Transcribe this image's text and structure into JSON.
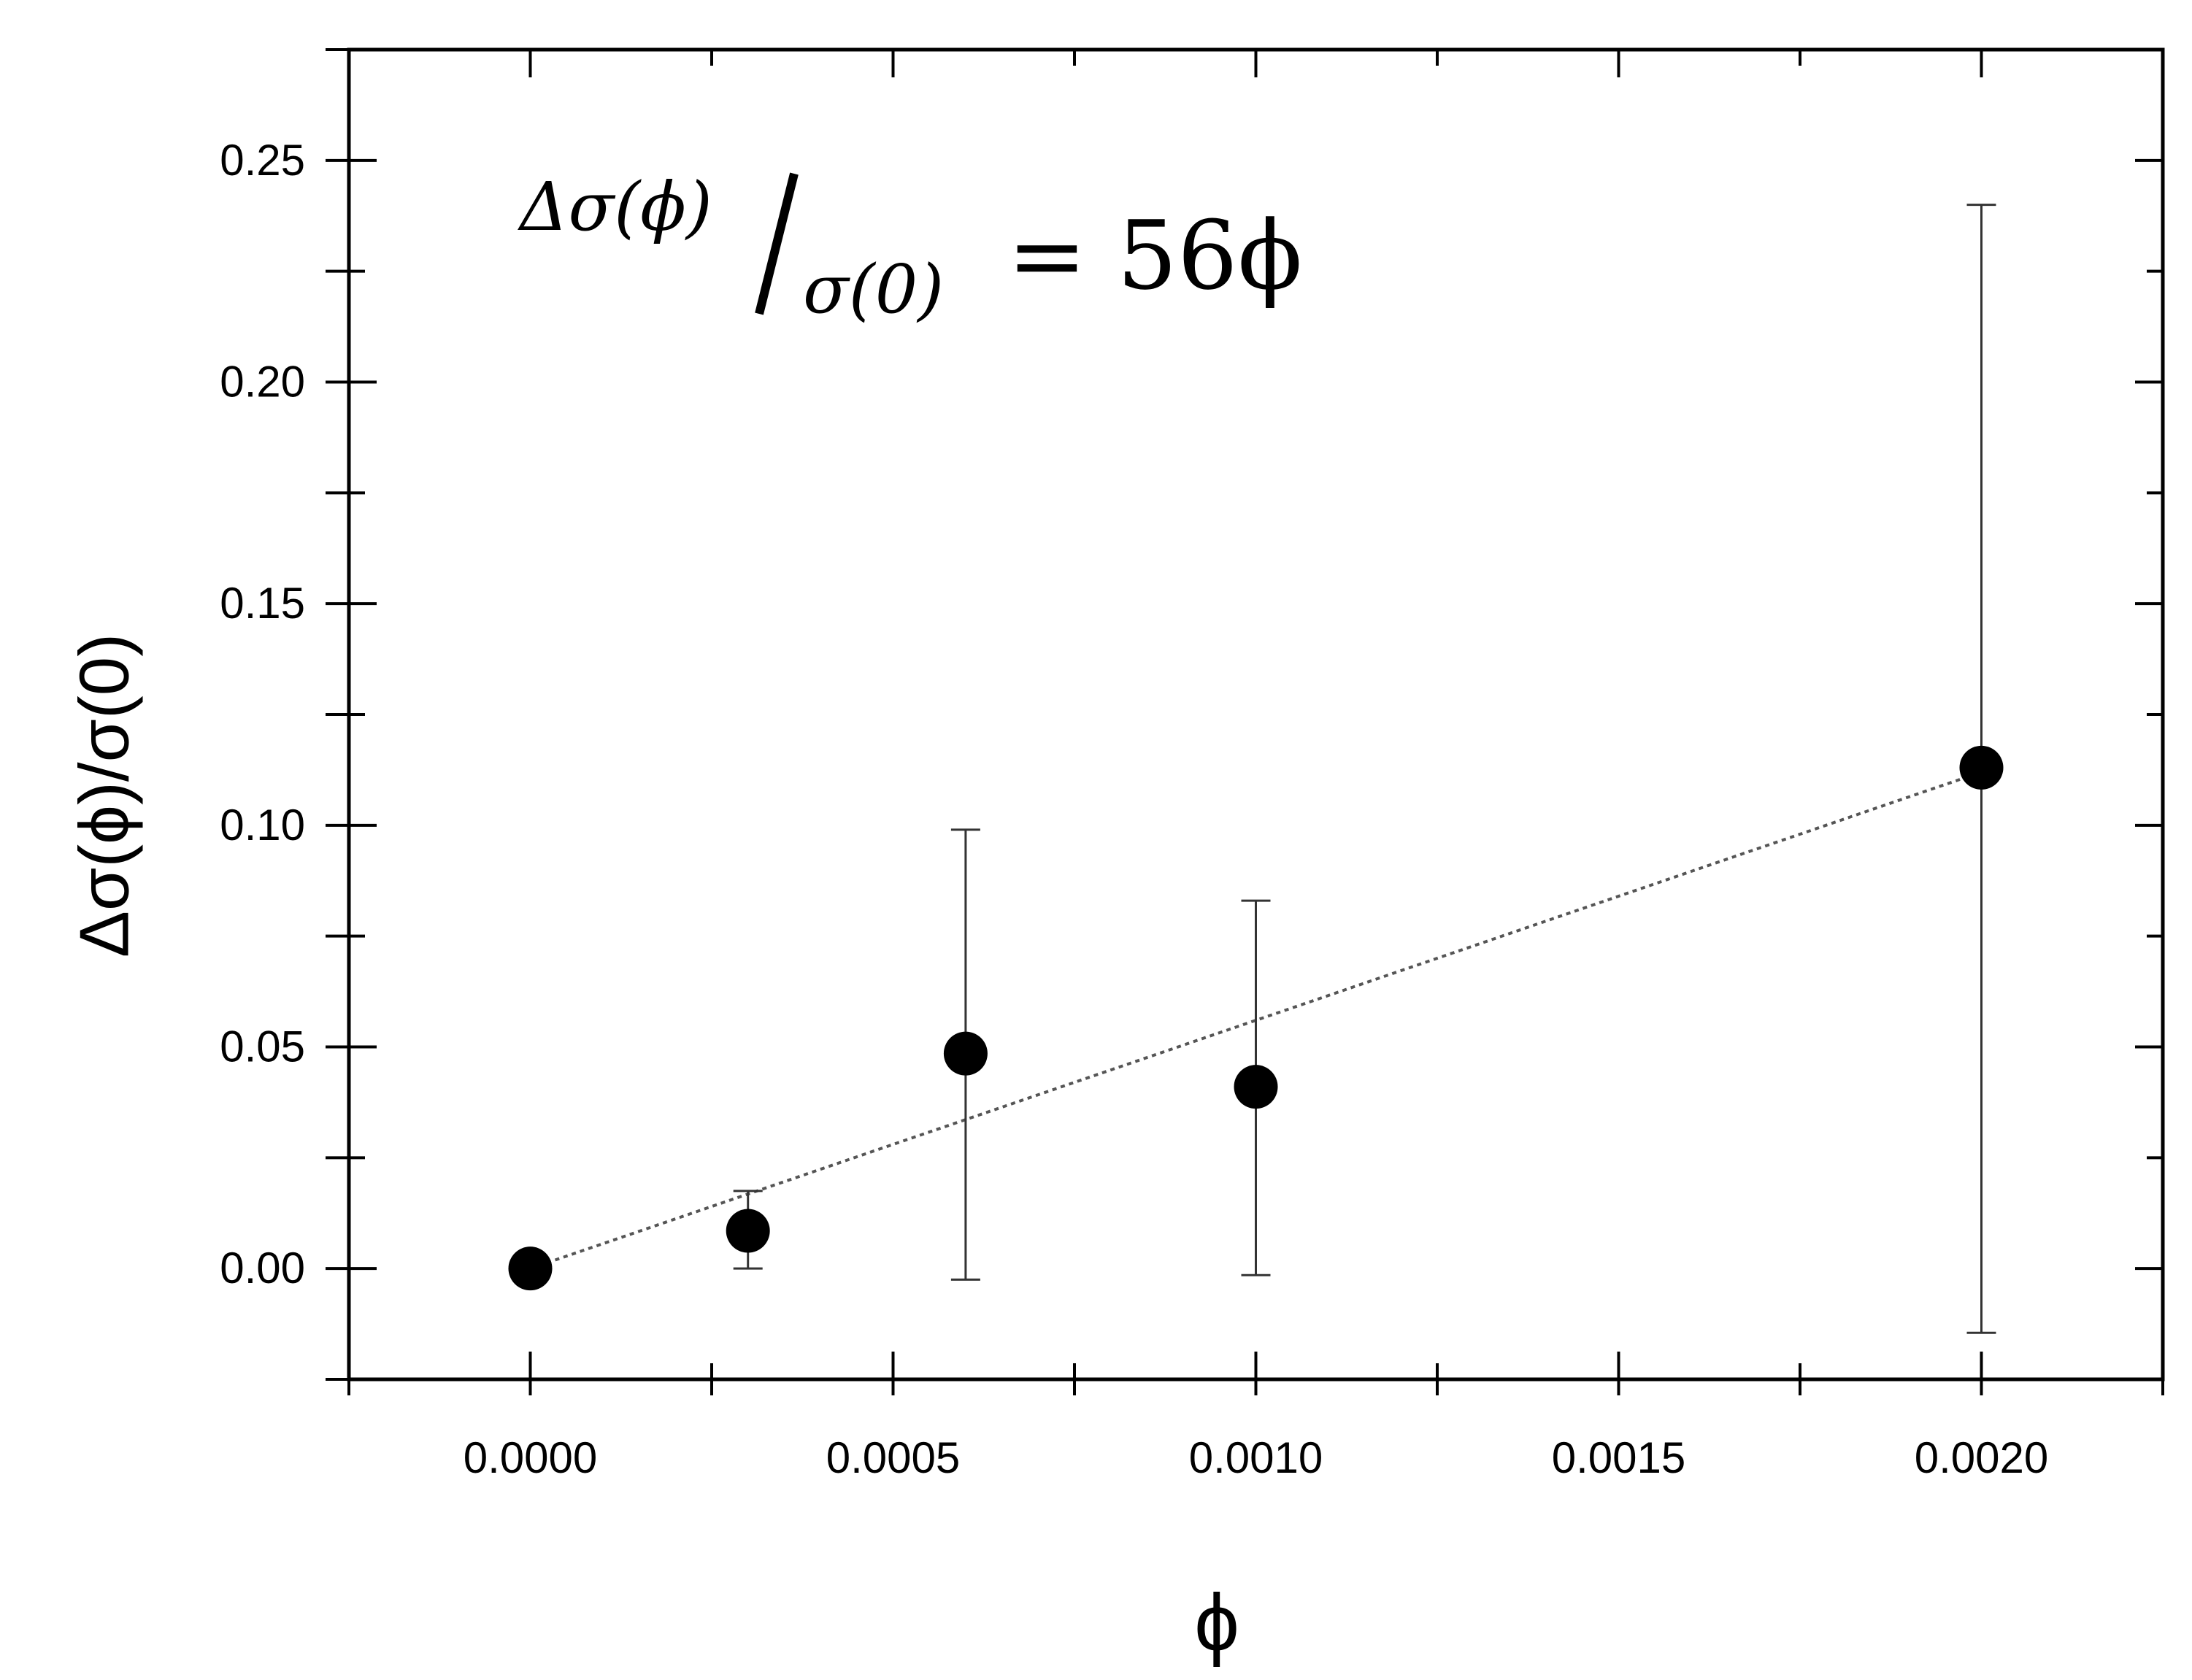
{
  "chart_data": {
    "type": "scatter",
    "title": "",
    "xlabel": "ϕ",
    "ylabel": "Δσ(ϕ)/σ(0)",
    "xlim": [
      -0.00025,
      0.00225
    ],
    "ylim": [
      -0.025,
      0.275
    ],
    "x_ticks": [
      0.0,
      0.0005,
      0.001,
      0.0015,
      0.002
    ],
    "x_tick_labels": [
      "0.0000",
      "0.0005",
      "0.0010",
      "0.0015",
      "0.0020"
    ],
    "y_ticks": [
      0.0,
      0.05,
      0.1,
      0.15,
      0.2,
      0.25
    ],
    "y_tick_labels": [
      "0.00",
      "0.05",
      "0.10",
      "0.15",
      "0.20",
      "0.25"
    ],
    "grid": false,
    "series": [
      {
        "marker": "filled-circle",
        "color": "#000000",
        "x": [
          0.0,
          0.0003,
          0.0006,
          0.001,
          0.002
        ],
        "y": [
          0.0,
          0.0085,
          0.0485,
          0.041,
          0.113
        ],
        "err_lower": [
          null,
          0.0,
          -0.0025,
          -0.0015,
          -0.0145
        ],
        "err_upper": [
          null,
          0.0175,
          0.099,
          0.083,
          0.24
        ]
      }
    ],
    "fit_line": {
      "style": "dotted",
      "slope": 56,
      "x_range": [
        0.0,
        0.002
      ]
    },
    "annotation": {
      "numerator": "Δσ(ϕ)",
      "denominator": "σ(0)",
      "rhs": "= 56ϕ"
    }
  }
}
